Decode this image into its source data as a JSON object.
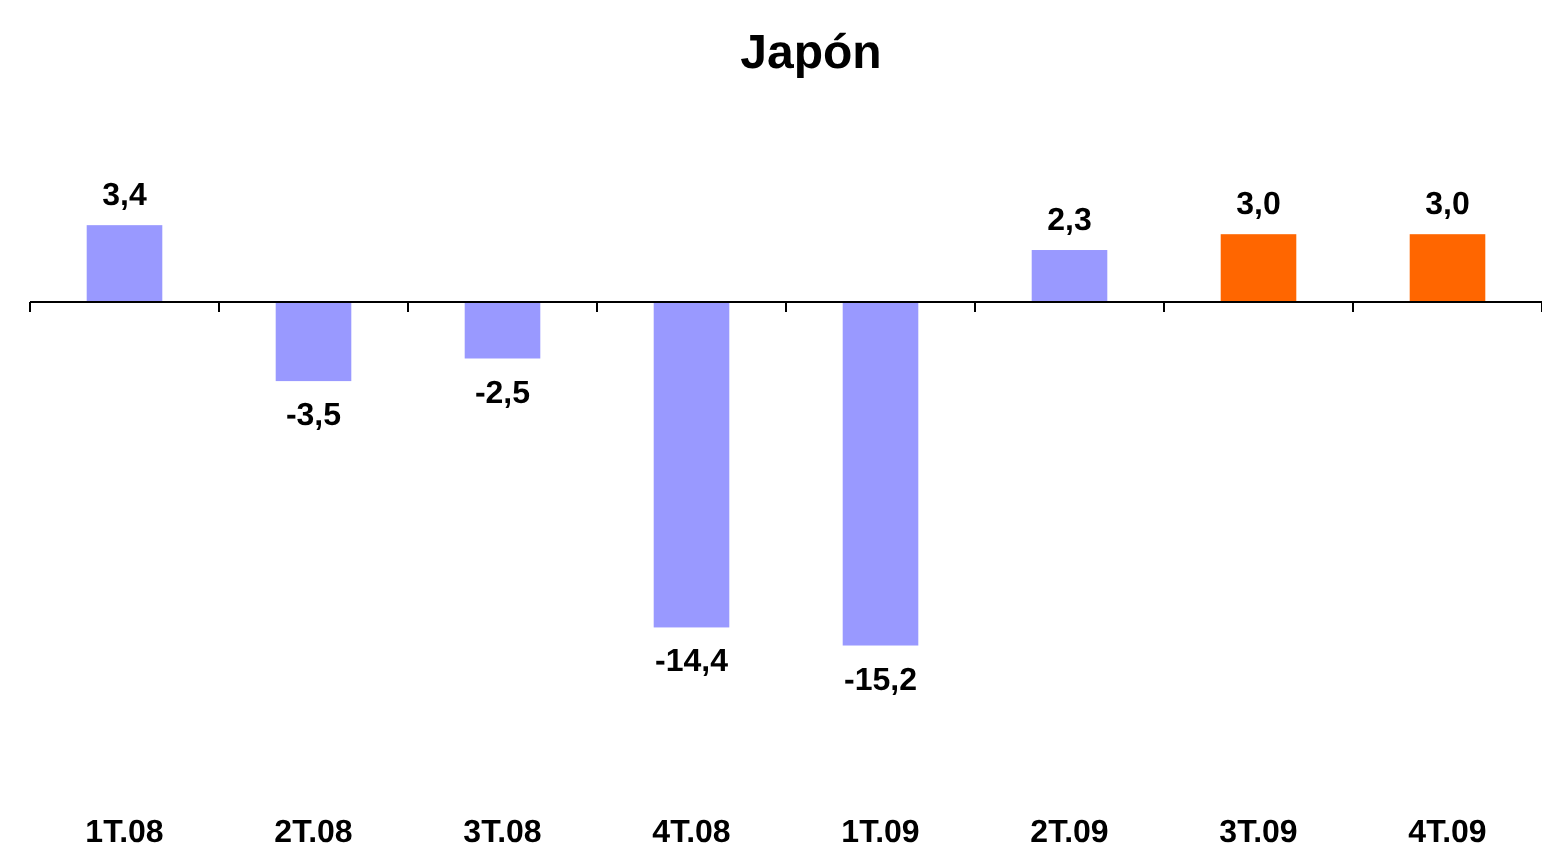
{
  "chart_data": {
    "type": "bar",
    "title": "Japón",
    "categories": [
      "1T.08",
      "2T.08",
      "3T.08",
      "4T.08",
      "1T.09",
      "2T.09",
      "3T.09",
      "4T.09"
    ],
    "values": [
      3.4,
      -3.5,
      -2.5,
      -14.4,
      -15.2,
      2.3,
      3.0,
      3.0
    ],
    "colors": [
      "#9999ff",
      "#9999ff",
      "#9999ff",
      "#9999ff",
      "#9999ff",
      "#9999ff",
      "#ff6600",
      "#ff6600"
    ],
    "value_labels": [
      "3,4",
      "-3,5",
      "-2,5",
      "-14,4",
      "-15,2",
      "2,3",
      "3,0",
      "3,0"
    ],
    "tick_labels": "x"
  }
}
